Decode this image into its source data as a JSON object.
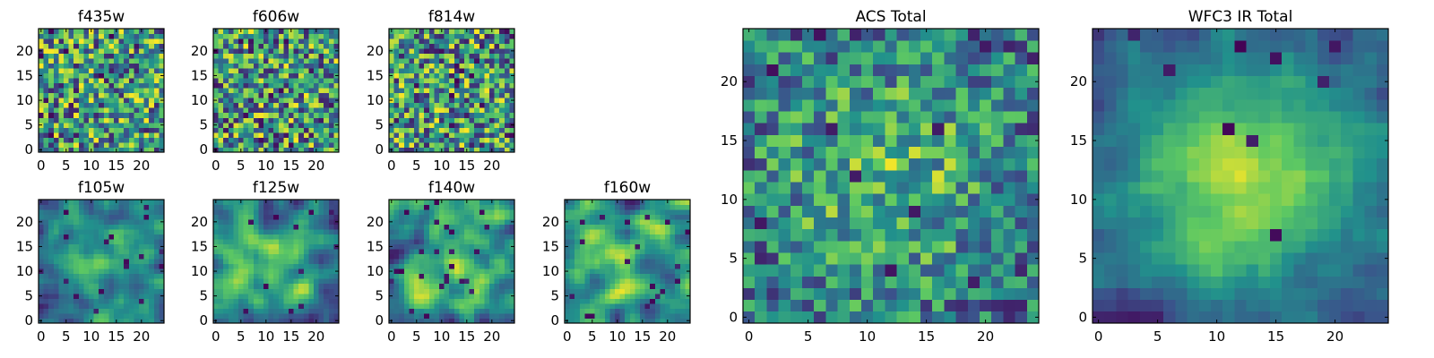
{
  "figure": {
    "cmap": [
      "#440154",
      "#3b528b",
      "#21918c",
      "#5ec962",
      "#fde725"
    ]
  },
  "chart_data": [
    {
      "type": "heatmap",
      "title": "f435w",
      "size": 25,
      "xticks": [
        0,
        5,
        10,
        15,
        20
      ],
      "yticks": [
        0,
        5,
        10,
        15,
        20
      ],
      "seed": 11,
      "smooth": 0,
      "center": 0.0,
      "noise": 1.0,
      "dark_rate": 0.04
    },
    {
      "type": "heatmap",
      "title": "f606w",
      "size": 25,
      "xticks": [
        0,
        5,
        10,
        15,
        20
      ],
      "yticks": [
        0,
        5,
        10,
        15,
        20
      ],
      "seed": 23,
      "smooth": 0,
      "center": 0.0,
      "noise": 1.0,
      "dark_rate": 0.04
    },
    {
      "type": "heatmap",
      "title": "f814w",
      "size": 25,
      "xticks": [
        0,
        5,
        10,
        15,
        20
      ],
      "yticks": [
        0,
        5,
        10,
        15,
        20
      ],
      "seed": 37,
      "smooth": 0,
      "center": 0.0,
      "noise": 1.0,
      "dark_rate": 0.05
    },
    {
      "type": "heatmap",
      "title": "f105w",
      "size": 25,
      "xticks": [
        0,
        5,
        10,
        15,
        20
      ],
      "yticks": [
        0,
        5,
        10,
        15,
        20
      ],
      "seed": 41,
      "smooth": 2,
      "center": 0.6,
      "noise": 0.7,
      "dark_rate": 0.02
    },
    {
      "type": "heatmap",
      "title": "f125w",
      "size": 25,
      "xticks": [
        0,
        5,
        10,
        15,
        20
      ],
      "yticks": [
        0,
        5,
        10,
        15,
        20
      ],
      "seed": 53,
      "smooth": 2,
      "center": 0.4,
      "noise": 0.8,
      "dark_rate": 0.02
    },
    {
      "type": "heatmap",
      "title": "f140w",
      "size": 25,
      "xticks": [
        0,
        5,
        10,
        15,
        20
      ],
      "yticks": [
        0,
        5,
        10,
        15,
        20
      ],
      "seed": 67,
      "smooth": 2,
      "center": 0.3,
      "noise": 0.9,
      "dark_rate": 0.03
    },
    {
      "type": "heatmap",
      "title": "f160w",
      "size": 25,
      "xticks": [
        0,
        5,
        10,
        15,
        20
      ],
      "yticks": [
        0,
        5,
        10,
        15,
        20
      ],
      "seed": 71,
      "smooth": 2,
      "center": 0.3,
      "noise": 0.9,
      "dark_rate": 0.03
    },
    {
      "type": "heatmap",
      "title": "ACS Total",
      "size": 25,
      "xticks": [
        0,
        5,
        10,
        15,
        20
      ],
      "yticks": [
        0,
        5,
        10,
        15,
        20
      ],
      "seed": 83,
      "smooth": 0,
      "center": 0.5,
      "noise": 0.7,
      "dark_rate": 0.025
    },
    {
      "type": "heatmap",
      "title": "WFC3 IR Total",
      "size": 25,
      "xticks": [
        0,
        5,
        10,
        15,
        20
      ],
      "yticks": [
        0,
        5,
        10,
        15,
        20
      ],
      "seed": 97,
      "smooth": 1,
      "center": 1.0,
      "noise": 0.45,
      "dark_rate": 0.015
    }
  ]
}
